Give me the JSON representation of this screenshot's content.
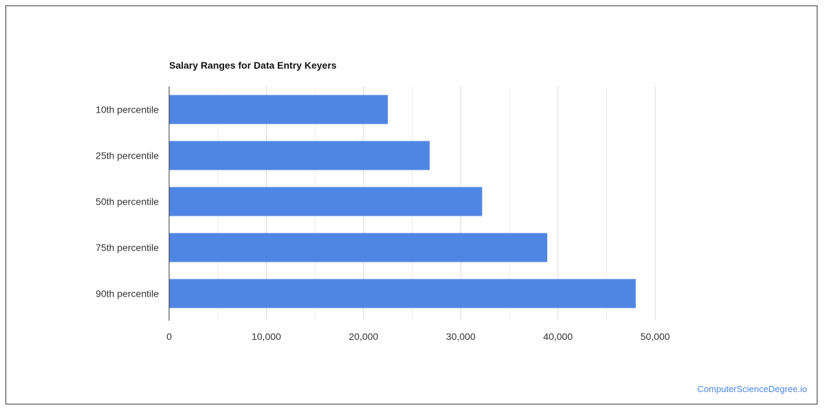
{
  "chart_data": {
    "type": "bar",
    "orientation": "horizontal",
    "title": "Salary Ranges for Data Entry Keyers",
    "categories": [
      "10th percentile",
      "25th percentile",
      "50th percentile",
      "75th percentile",
      "90th percentile"
    ],
    "values": [
      22500,
      26800,
      32200,
      38900,
      48000
    ],
    "xlim": [
      0,
      50000
    ],
    "x_ticks": [
      0,
      10000,
      20000,
      30000,
      40000,
      50000
    ],
    "x_tick_labels": [
      "0",
      "10,000",
      "20,000",
      "30,000",
      "40,000",
      "50,000"
    ],
    "grid": true,
    "legend": "none",
    "bar_color": "#5086e3"
  },
  "footer": {
    "watermark": "ComputerScienceDegree.io"
  },
  "colors": {
    "gridline": "#d9d9d9",
    "axis": "#333333",
    "label": "#333333"
  }
}
